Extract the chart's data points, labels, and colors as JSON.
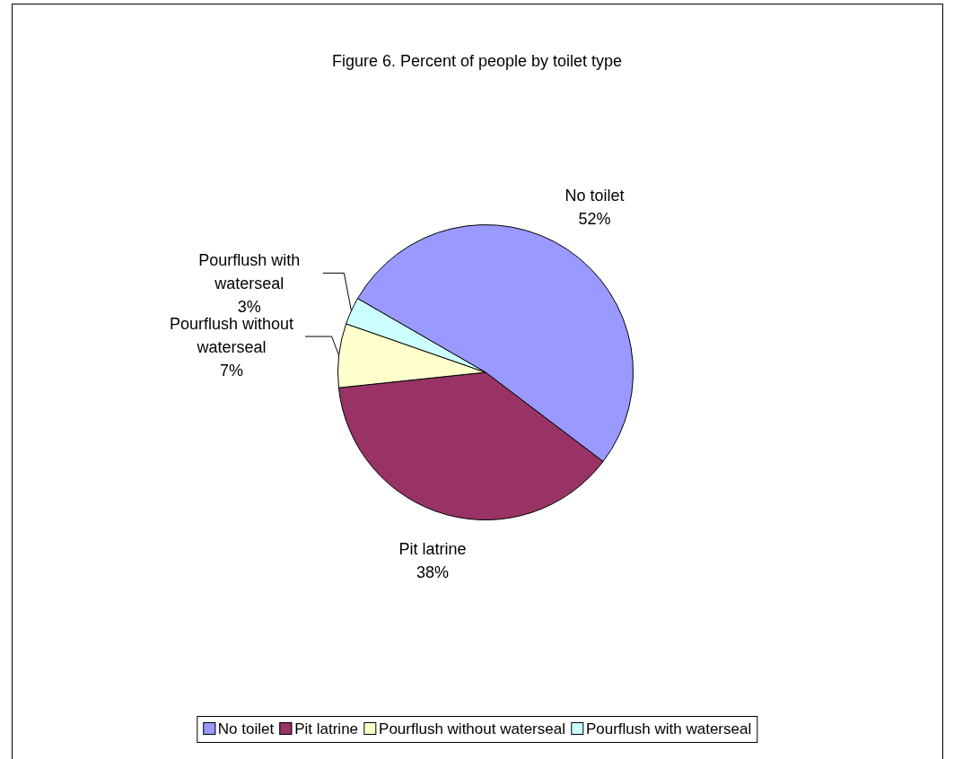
{
  "chart_data": {
    "type": "pie",
    "title": "Figure 6. Percent of people by toilet type",
    "categories": [
      "No toilet",
      "Pit latrine",
      "Pourflush without waterseal",
      "Pourflush with waterseal"
    ],
    "values": [
      52,
      38,
      7,
      3
    ],
    "colors": [
      "#9999ff",
      "#993366",
      "#ffffcc",
      "#ccffff"
    ],
    "value_labels": [
      "52%",
      "38%",
      "7%",
      "3%"
    ],
    "legend": "bottom"
  }
}
